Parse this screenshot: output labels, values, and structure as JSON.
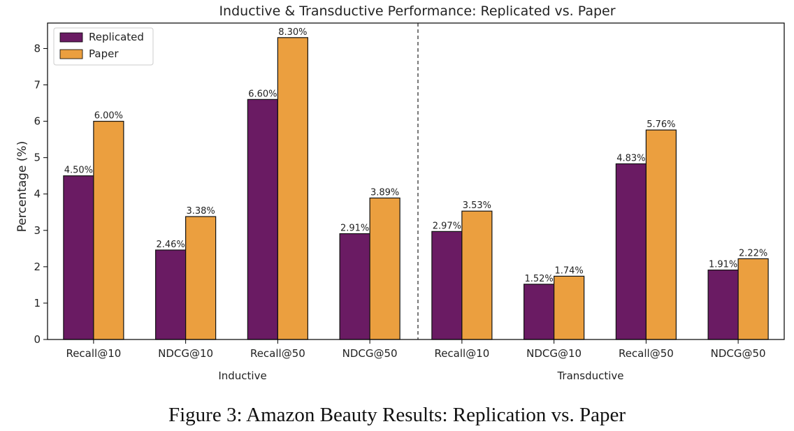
{
  "figure": {
    "caption": "Figure 3: Amazon Beauty Results: Replication vs. Paper"
  },
  "chart_data": {
    "type": "bar",
    "title": "Inductive & Transductive Performance: Replicated vs. Paper",
    "xlabel": "",
    "ylabel": "Percentage (%)",
    "ylim": [
      0,
      8.7
    ],
    "yticks": [
      0,
      1,
      2,
      3,
      4,
      5,
      6,
      7,
      8
    ],
    "grid": false,
    "legend_position": "top-left",
    "groups": [
      "Inductive",
      "Transductive"
    ],
    "categories": [
      "Recall@10",
      "NDCG@10",
      "Recall@50",
      "NDCG@50",
      "Recall@10",
      "NDCG@10",
      "Recall@50",
      "NDCG@50"
    ],
    "group_index": [
      0,
      0,
      0,
      0,
      1,
      1,
      1,
      1
    ],
    "series": [
      {
        "name": "Replicated",
        "color": "#6a1b63",
        "values": [
          4.5,
          2.46,
          6.6,
          2.91,
          2.97,
          1.52,
          4.83,
          1.91
        ],
        "labels": [
          "4.50%",
          "2.46%",
          "6.60%",
          "2.91%",
          "2.97%",
          "1.52%",
          "4.83%",
          "1.91%"
        ]
      },
      {
        "name": "Paper",
        "color": "#eb9f3f",
        "values": [
          6.0,
          3.38,
          8.3,
          3.89,
          3.53,
          1.74,
          5.76,
          2.22
        ],
        "labels": [
          "6.00%",
          "3.38%",
          "8.30%",
          "3.89%",
          "3.53%",
          "1.74%",
          "5.76%",
          "2.22%"
        ]
      }
    ],
    "divider": "dashed vertical line between groups"
  }
}
